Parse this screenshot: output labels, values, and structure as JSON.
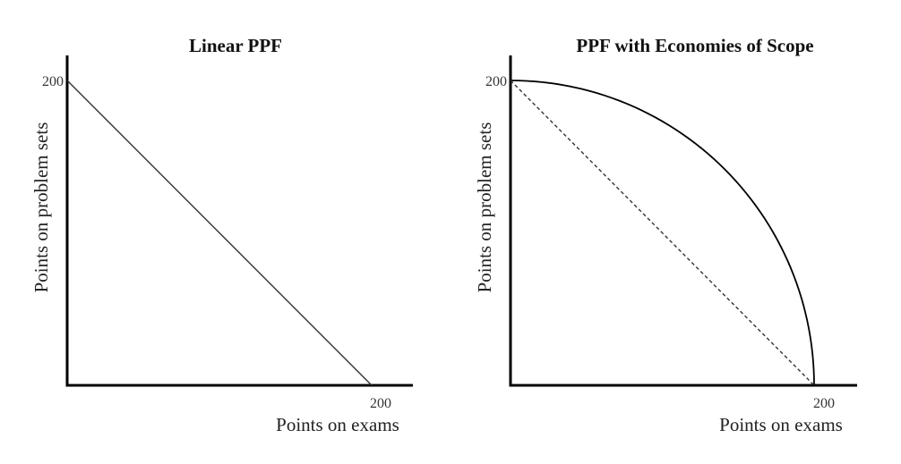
{
  "chart_data": [
    {
      "type": "line",
      "title": "Linear PPF",
      "xlabel": "Points on exams",
      "ylabel": "Points on problem sets",
      "xlim": [
        0,
        230
      ],
      "ylim": [
        0,
        230
      ],
      "x_tick_label": "200",
      "y_tick_label": "200",
      "grid": false,
      "series": [
        {
          "style": "solid",
          "shape": "linear",
          "x": [
            0,
            200
          ],
          "y": [
            200,
            0
          ],
          "color": "#333333"
        }
      ]
    },
    {
      "type": "line",
      "title": "PPF with Economies of Scope",
      "xlabel": "Points on exams",
      "ylabel": "Points on problem sets",
      "xlim": [
        0,
        230
      ],
      "ylim": [
        0,
        230
      ],
      "x_tick_label": "200",
      "y_tick_label": "200",
      "grid": false,
      "series": [
        {
          "style": "solid",
          "shape": "concave",
          "x": [
            0,
            40,
            80,
            120,
            160,
            185,
            200
          ],
          "y": [
            200,
            196,
            183,
            160,
            120,
            77,
            0
          ],
          "color": "#000000"
        },
        {
          "style": "dashed",
          "shape": "linear",
          "x": [
            0,
            200
          ],
          "y": [
            200,
            0
          ],
          "color": "#333333"
        }
      ]
    }
  ]
}
